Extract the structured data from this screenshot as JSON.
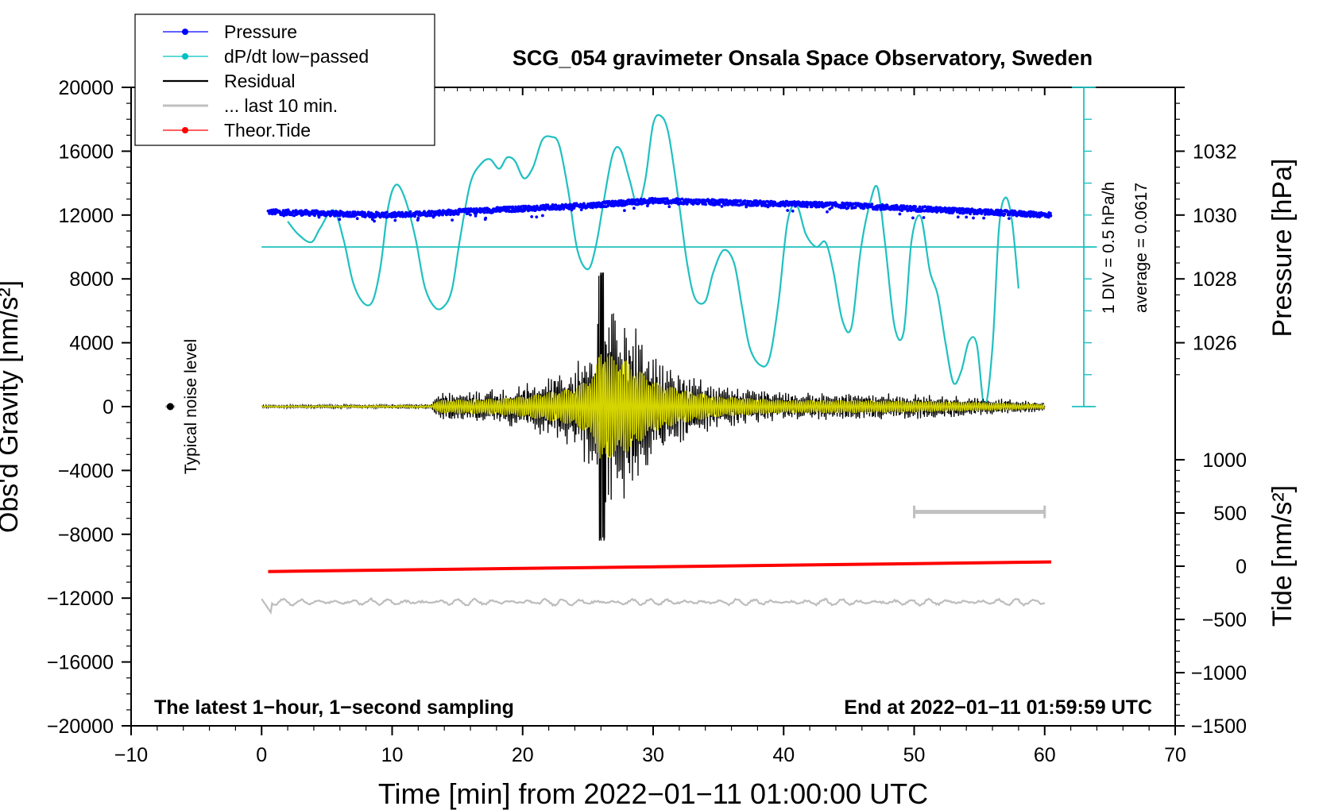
{
  "chart_data": {
    "type": "line",
    "title": "SCG_054 gravimeter Onsala Space Observatory, Sweden",
    "xlabel": "Time [min] from 2022−01−11 01:00:00 UTC",
    "xlim": [
      -10,
      70
    ],
    "x_ticks": [
      -10,
      0,
      10,
      20,
      30,
      40,
      50,
      60,
      70
    ],
    "x_tick_labels": [
      "−10",
      "0",
      "10",
      "20",
      "30",
      "40",
      "50",
      "60",
      "70"
    ],
    "left_axis": {
      "label": "Obs'd Gravity [nm/s²]",
      "ylim": [
        -20000,
        20000
      ],
      "ticks": [
        -20000,
        -16000,
        -12000,
        -8000,
        -4000,
        0,
        4000,
        8000,
        12000,
        16000,
        20000
      ],
      "tick_labels": [
        "−20000",
        "−16000",
        "−12000",
        "−8000",
        "−4000",
        "0",
        "4000",
        "8000",
        "12000",
        "16000",
        "20000"
      ]
    },
    "right_axis_pressure": {
      "label": "Pressure [hPa]",
      "ticks": [
        1026,
        1028,
        1030,
        1032
      ],
      "tick_labels": [
        "1026",
        "1028",
        "1030",
        "1032"
      ],
      "gravity_at_1026": 4000,
      "gravity_per_hpa": 2000
    },
    "right_axis_tide": {
      "label": "Tide [nm/s²]",
      "ticks": [
        -1500,
        -1000,
        -500,
        0,
        500,
        1000
      ],
      "tick_labels": [
        "−1500",
        "−1000",
        "−500",
        "0",
        "500",
        "1000"
      ],
      "gravity_at_tide_0": -10000,
      "gravity_per_tide_unit": 6.67
    },
    "legend": {
      "position": "top-left",
      "entries": [
        {
          "name": "Pressure",
          "color": "#0000ff",
          "marker": "dot"
        },
        {
          "name": "dP/dt low−passed",
          "color": "#00c0c0",
          "marker": "dot"
        },
        {
          "name": "Residual",
          "color": "#000000",
          "marker": "none"
        },
        {
          "name": "... last 10 min.",
          "color": "#c0c0c0",
          "marker": "none"
        },
        {
          "name": "Theor.Tide",
          "color": "#ff0000",
          "marker": "dot"
        }
      ]
    },
    "series": [
      {
        "name": "Pressure",
        "units": "hPa",
        "color": "#0000ff",
        "x": [
          0.5,
          5,
          10,
          15,
          20,
          25,
          30,
          35,
          40,
          45,
          50,
          55,
          60.5
        ],
        "values": [
          1030.1,
          1030.05,
          1030.0,
          1030.1,
          1030.2,
          1030.3,
          1030.45,
          1030.4,
          1030.35,
          1030.3,
          1030.2,
          1030.1,
          1030.0
        ]
      },
      {
        "name": "dP/dt low-passed",
        "units": "gravity-axis equivalent (baseline 10000)",
        "color": "#00c0c0",
        "baseline": 10000,
        "x": [
          2,
          2.8,
          3.8,
          4.5,
          5.5,
          6.3,
          7.0,
          7.8,
          8.5,
          9.1,
          9.7,
          10.3,
          11.0,
          11.8,
          12.5,
          13.3,
          14.0,
          14.6,
          15.2,
          16.0,
          16.8,
          17.5,
          18.2,
          18.8,
          19.4,
          20.1,
          20.8,
          21.5,
          22.2,
          22.8,
          23.5,
          24.2,
          25.0,
          25.6,
          26.2,
          26.9,
          27.5,
          28.2,
          28.8,
          29.4,
          30.0,
          30.6,
          31.2,
          32.0,
          32.6,
          33.2,
          34.0,
          34.6,
          35.4,
          36.2,
          36.8,
          37.4,
          38.2,
          38.9,
          39.6,
          40.3,
          41.0,
          41.7,
          42.5,
          43.2,
          43.8,
          44.5,
          45.2,
          45.9,
          46.6,
          47.2,
          47.8,
          48.5,
          49.2,
          49.8,
          50.5,
          51.2,
          51.8,
          52.4,
          53.0,
          53.6,
          54.2,
          54.8,
          55.4,
          56.0,
          56.5,
          57.0,
          57.5,
          58.0
        ],
        "values": [
          11600,
          10800,
          10300,
          11200,
          12300,
          10400,
          7800,
          6500,
          6600,
          8700,
          12500,
          13900,
          13000,
          10500,
          7500,
          6200,
          6300,
          7400,
          10500,
          14000,
          15200,
          15500,
          14900,
          15600,
          15400,
          14300,
          15000,
          16700,
          16900,
          16400,
          13500,
          9800,
          8600,
          10000,
          12800,
          15800,
          16100,
          14200,
          12600,
          14200,
          17700,
          18200,
          17000,
          12600,
          9000,
          6800,
          6600,
          8400,
          9800,
          9000,
          6300,
          3700,
          2600,
          3000,
          6500,
          11600,
          12600,
          10800,
          10000,
          10300,
          8500,
          5400,
          5000,
          9800,
          12700,
          13700,
          10000,
          5000,
          4700,
          10400,
          11900,
          8500,
          7000,
          4000,
          1500,
          2200,
          4100,
          3900,
          0,
          3700,
          11200,
          13100,
          11600,
          7400
        ]
      },
      {
        "name": "Residual",
        "units": "nm/s²",
        "color": "#000000",
        "envelope_x": [
          0,
          13,
          13.5,
          18,
          20,
          22,
          24,
          25.5,
          26,
          27,
          28,
          29,
          30,
          32,
          35,
          40,
          45,
          50,
          55,
          60
        ],
        "envelope_values": [
          80,
          150,
          900,
          1100,
          1400,
          2000,
          2600,
          4500,
          8400,
          6700,
          6400,
          4900,
          3500,
          2400,
          1400,
          900,
          900,
          800,
          600,
          300
        ],
        "peak_max": 8400,
        "peak_min": -8200
      },
      {
        "name": "last 10 min (overlay)",
        "units": "nm/s²",
        "color": "#cccc00"
      },
      {
        "name": "Theor.Tide",
        "units": "nm/s²",
        "color": "#ff0000",
        "x": [
          0.5,
          60.5
        ],
        "values": [
          -50,
          40
        ]
      },
      {
        "name": "Noise trace",
        "units": "nm/s² (offset)",
        "color": "#c0c0c0",
        "baseline": -12250
      }
    ],
    "annotations": {
      "noise_label": "Typical noise level",
      "noise_marker": {
        "x": -7,
        "y": 0
      },
      "scale_div": "1 DIV = 0.5 hPa/h",
      "average": "average = 0.0617",
      "scale_div_axis": {
        "x": 63,
        "ylim": [
          0,
          20000
        ],
        "step": 2000
      },
      "ten_min_bar": {
        "x0": 50,
        "x1": 60,
        "y": -6600
      },
      "footer_left": "The latest 1−hour, 1−second sampling",
      "footer_right": "End at 2022−01−11 01:59:59 UTC"
    }
  }
}
